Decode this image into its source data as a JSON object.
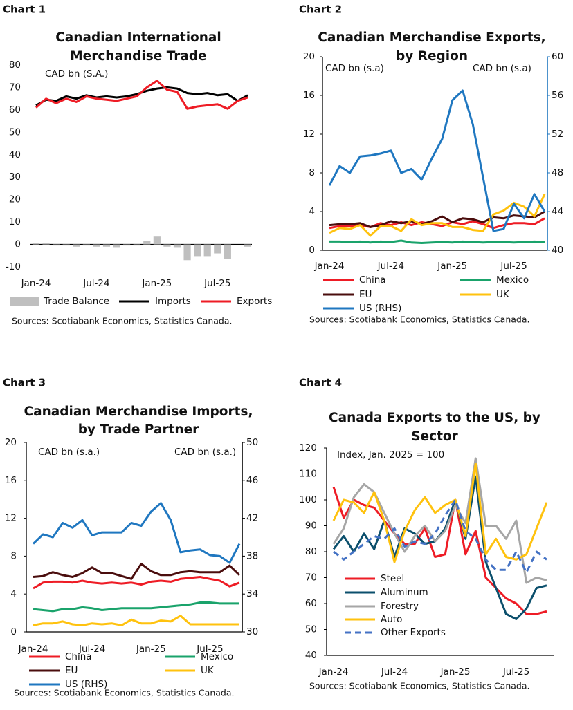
{
  "chart_data": [
    {
      "label": "Chart 1",
      "type": "line",
      "title": [
        "Canadian International",
        "Merchandise Trade"
      ],
      "y_label": "CAD bn (S.A.)",
      "categories": [
        "Jan-24",
        null,
        null,
        null,
        null,
        null,
        "Jul-24",
        null,
        null,
        null,
        null,
        null,
        "Jan-25",
        null,
        null,
        null,
        null,
        null,
        "Jul-25",
        null,
        null,
        null
      ],
      "series": [
        {
          "name": "Trade Balance",
          "kind": "bar",
          "color": "#bfbfbf",
          "values": [
            0.5,
            0.5,
            -0.5,
            -0.5,
            -1,
            -0.5,
            -1,
            -1,
            -1.5,
            -0.5,
            -0.5,
            1.5,
            3.5,
            -1,
            -1.5,
            -7,
            -5.5,
            -5.5,
            -4,
            -6.5,
            0,
            -1
          ]
        },
        {
          "name": "Imports",
          "color": "#000000",
          "values": [
            62,
            64.5,
            64,
            66,
            65,
            66.5,
            65.5,
            66,
            65.5,
            66,
            67,
            68.5,
            69.5,
            70,
            69.5,
            67.5,
            67,
            67.5,
            66.5,
            67,
            64,
            66.5
          ]
        },
        {
          "name": "Exports",
          "color": "#ee1c25",
          "values": [
            61,
            65,
            63,
            65,
            63.5,
            66,
            65,
            64.5,
            64,
            65,
            66,
            70,
            73,
            69,
            68,
            60.5,
            61.5,
            62,
            62.5,
            60.5,
            64,
            65.5
          ]
        }
      ],
      "ylim": [
        -10,
        80
      ],
      "yticks": [
        -10,
        0,
        10,
        20,
        30,
        40,
        50,
        60,
        70,
        80
      ],
      "grid": false,
      "source": "Sources: Scotiabank Economics, Statistics Canada."
    },
    {
      "label": "Chart 2",
      "type": "line",
      "title": [
        "Canadian Merchandise Exports,",
        "by Region"
      ],
      "y_label": "CAD bn (s.a)",
      "y2_label": "CAD bn (s.a)",
      "categories": [
        "Jan-24",
        null,
        null,
        null,
        null,
        null,
        "Jul-24",
        null,
        null,
        null,
        null,
        null,
        "Jan-25",
        null,
        null,
        null,
        null,
        null,
        "Jul-25",
        null,
        null,
        null
      ],
      "series": [
        {
          "name": "China",
          "color": "#ee1c25",
          "values": [
            2.3,
            2.5,
            2.5,
            2.6,
            2.4,
            2.8,
            2.6,
            2.9,
            2.6,
            2.9,
            2.7,
            2.5,
            2.9,
            2.7,
            3.0,
            2.7,
            2.3,
            2.6,
            2.8,
            2.8,
            2.7,
            3.3
          ]
        },
        {
          "name": "Mexico",
          "color": "#1aa36b",
          "values": [
            0.9,
            0.9,
            0.85,
            0.9,
            0.8,
            0.9,
            0.85,
            1.0,
            0.8,
            0.75,
            0.8,
            0.85,
            0.8,
            0.9,
            0.85,
            0.8,
            0.85,
            0.85,
            0.8,
            0.85,
            0.9,
            0.85
          ]
        },
        {
          "name": "EU",
          "color": "#4a0d0d",
          "values": [
            2.6,
            2.7,
            2.7,
            2.8,
            2.4,
            2.6,
            3.0,
            2.8,
            3.0,
            2.7,
            3.0,
            3.5,
            2.9,
            3.3,
            3.2,
            2.9,
            3.4,
            3.3,
            3.6,
            3.5,
            3.4,
            4.0
          ]
        },
        {
          "name": "UK",
          "color": "#ffc20e",
          "values": [
            1.8,
            2.3,
            2.2,
            2.6,
            1.5,
            2.5,
            2.5,
            2.0,
            3.2,
            2.6,
            2.8,
            2.8,
            2.4,
            2.4,
            2.1,
            2.0,
            3.7,
            4.1,
            4.9,
            4.5,
            3.5,
            5.8
          ]
        },
        {
          "name": "US (RHS)",
          "color": "#1f77c0",
          "axis": "y2",
          "values": [
            46.7,
            48.7,
            48,
            49.7,
            49.8,
            50,
            50.3,
            48,
            48.4,
            47.3,
            49.5,
            51.5,
            55.5,
            56.5,
            53,
            47.5,
            42,
            42.2,
            44.8,
            43.3,
            45.8,
            44
          ]
        }
      ],
      "ylim": [
        0,
        20
      ],
      "yticks": [
        0,
        4,
        8,
        12,
        16,
        20
      ],
      "y2lim": [
        40,
        60
      ],
      "y2ticks": [
        40,
        44,
        48,
        52,
        56,
        60
      ],
      "grid": false,
      "source": "Sources: Scotiabank Economics, Statistics Canada."
    },
    {
      "label": "Chart 3",
      "type": "line",
      "title": [
        "Canadian Merchandise Imports,",
        "by Trade Partner"
      ],
      "y_label": "CAD bn (s.a.)",
      "y2_label": "CAD bn (s.a.)",
      "categories": [
        "Jan-24",
        null,
        null,
        null,
        null,
        null,
        "Jul-24",
        null,
        null,
        null,
        null,
        null,
        "Jan-25",
        null,
        null,
        null,
        null,
        null,
        "Jul-25",
        null,
        null,
        null
      ],
      "series": [
        {
          "name": "China",
          "color": "#ee1c25",
          "values": [
            4.6,
            5.2,
            5.3,
            5.3,
            5.2,
            5.4,
            5.2,
            5.1,
            5.2,
            5.1,
            5.2,
            5.0,
            5.3,
            5.4,
            5.3,
            5.6,
            5.7,
            5.8,
            5.6,
            5.4,
            4.8,
            5.2
          ]
        },
        {
          "name": "Mexico",
          "color": "#1aa36b",
          "values": [
            2.4,
            2.3,
            2.2,
            2.4,
            2.4,
            2.6,
            2.5,
            2.3,
            2.4,
            2.5,
            2.5,
            2.5,
            2.5,
            2.6,
            2.7,
            2.8,
            2.9,
            3.1,
            3.1,
            3.0,
            3.0,
            3.0
          ]
        },
        {
          "name": "EU",
          "color": "#4a0d0d",
          "values": [
            5.8,
            5.9,
            6.3,
            6.0,
            5.8,
            6.2,
            6.8,
            6.2,
            6.2,
            5.9,
            5.6,
            7.2,
            6.4,
            6.0,
            6.0,
            6.3,
            6.4,
            6.3,
            6.3,
            6.3,
            7.0,
            6.0
          ]
        },
        {
          "name": "UK",
          "color": "#ffc20e",
          "values": [
            0.7,
            0.9,
            0.9,
            1.1,
            0.8,
            0.7,
            0.9,
            0.8,
            0.9,
            0.7,
            1.3,
            0.9,
            0.9,
            1.2,
            1.1,
            1.7,
            0.8,
            0.8,
            0.8,
            0.8,
            0.8,
            0.8
          ]
        },
        {
          "name": "US (RHS)",
          "color": "#1f77c0",
          "axis": "y2",
          "values": [
            39.3,
            40.3,
            40,
            41.5,
            41,
            41.8,
            40.2,
            40.5,
            40.5,
            40.5,
            41.5,
            41.2,
            42.7,
            43.6,
            41.8,
            38.4,
            38.6,
            38.7,
            38.1,
            38,
            37.3,
            39.3
          ]
        }
      ],
      "ylim": [
        0,
        20
      ],
      "yticks": [
        0,
        4,
        8,
        12,
        16,
        20
      ],
      "y2lim": [
        30,
        50
      ],
      "y2ticks": [
        30,
        34,
        38,
        42,
        46,
        50
      ],
      "grid": false,
      "source": "Sources: Scotiabank Economics, Statistics Canada."
    },
    {
      "label": "Chart 4",
      "type": "line",
      "title": [
        "Canada Exports to the US, by",
        "Sector"
      ],
      "y_label": "Index, Jan. 2025 = 100",
      "categories": [
        "Jan-24",
        null,
        null,
        null,
        null,
        null,
        "Jul-24",
        null,
        null,
        null,
        null,
        null,
        "Jan-25",
        null,
        null,
        null,
        null,
        null,
        "Jul-25",
        null,
        null,
        null
      ],
      "series": [
        {
          "name": "Steel",
          "color": "#ee1c25",
          "values": [
            105,
            93,
            100,
            98,
            97,
            92,
            87,
            83,
            83,
            89,
            78,
            79,
            100,
            79,
            88,
            70,
            66,
            62,
            60,
            56,
            56,
            57
          ]
        },
        {
          "name": "Aluminum",
          "color": "#0b4f6c",
          "values": [
            81,
            86,
            80,
            87,
            81,
            92,
            78,
            89,
            87,
            83,
            84,
            89,
            100,
            85,
            109,
            76,
            66,
            56,
            54,
            58,
            66,
            67
          ]
        },
        {
          "name": "Forestry",
          "color": "#a6a6a6",
          "values": [
            83,
            89,
            101,
            106,
            103,
            95,
            87,
            80,
            86,
            90,
            84,
            88,
            98,
            91,
            116,
            90,
            90,
            85,
            92,
            68,
            70,
            69
          ]
        },
        {
          "name": "Auto",
          "color": "#ffc20e",
          "values": [
            92,
            100,
            99,
            95,
            103,
            92,
            76,
            88,
            96,
            101,
            95,
            98,
            100,
            86,
            114,
            79,
            85,
            78,
            77,
            79,
            89,
            99
          ]
        },
        {
          "name": "Other Exports",
          "color": "#4472c4",
          "dash": true,
          "values": [
            80,
            77,
            80,
            83,
            86,
            85,
            89,
            82,
            84,
            83,
            87,
            94,
            100,
            88,
            85,
            77,
            73,
            73,
            80,
            72,
            80,
            77
          ]
        }
      ],
      "ylim": [
        40,
        120
      ],
      "yticks": [
        40,
        50,
        60,
        70,
        80,
        90,
        100,
        110,
        120
      ],
      "grid": false,
      "source": "Sources: Scotiabank Economics, Statistics Canada."
    }
  ]
}
